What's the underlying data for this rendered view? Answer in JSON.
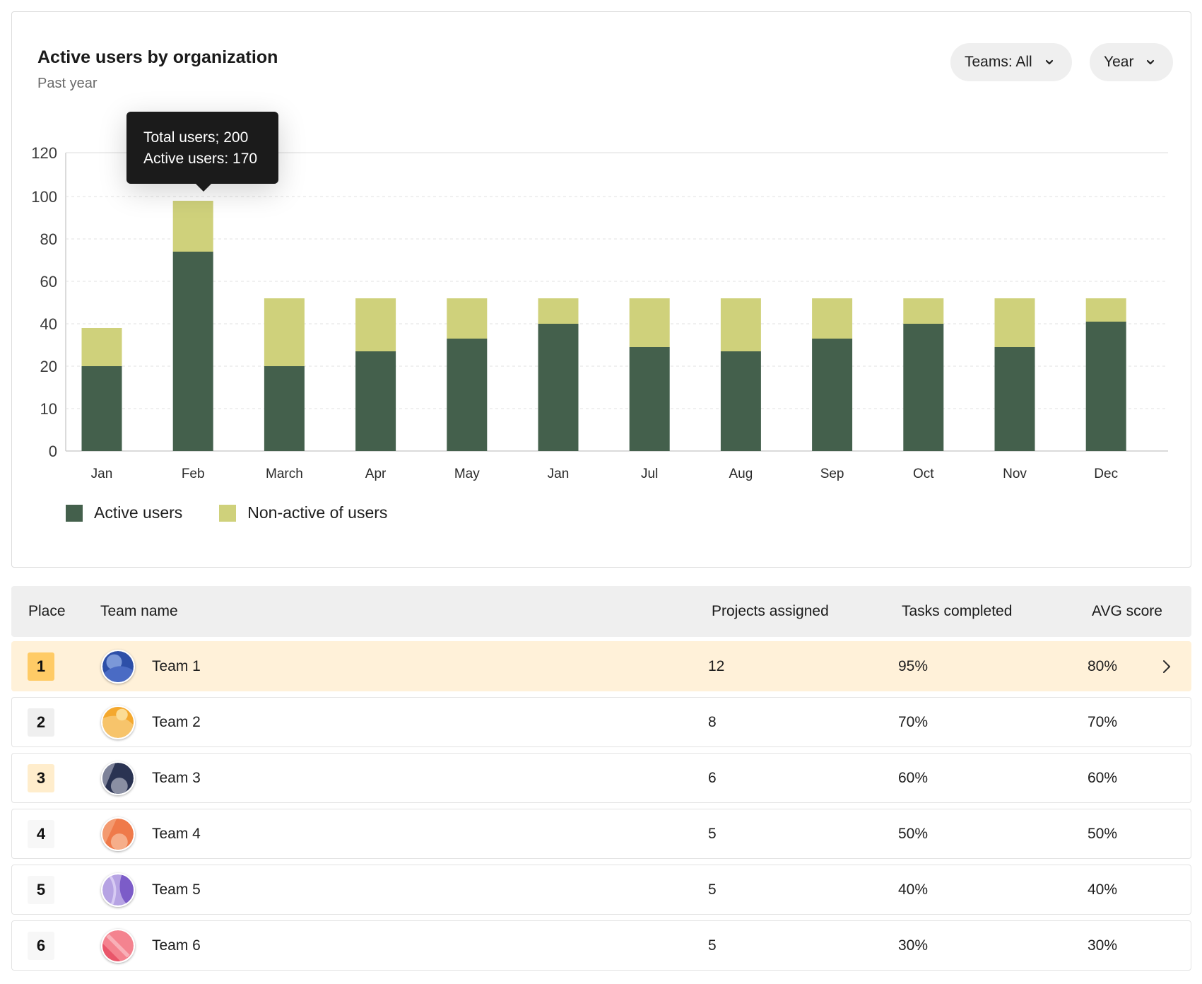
{
  "card": {
    "title": "Active users by organization",
    "subtitle": "Past year",
    "filters": [
      {
        "label": "Teams: All",
        "icon": "chevron-down-icon"
      },
      {
        "label": "Year",
        "icon": "chevron-down-icon"
      }
    ],
    "tooltip": {
      "line1": "Total users; 200",
      "line2": "Active users: 170"
    }
  },
  "colors": {
    "active": "#44604c",
    "nonactive": "#cfd17b",
    "highlight_row": "#fff1d9"
  },
  "chart_data": {
    "type": "bar",
    "stacked": true,
    "categories": [
      "Jan",
      "Feb",
      "March",
      "Apr",
      "May",
      "Jan",
      "Jul",
      "Aug",
      "Sep",
      "Oct",
      "Nov",
      "Dec"
    ],
    "y_ticks": [
      "0",
      "10",
      "20",
      "40",
      "60",
      "80",
      "100",
      "120"
    ],
    "y_tick_values": [
      0,
      10,
      20,
      40,
      60,
      80,
      100,
      120
    ],
    "series": [
      {
        "name": "Active users",
        "values": [
          20,
          74,
          20,
          27,
          33,
          40,
          29,
          27,
          33,
          40,
          29,
          41
        ]
      },
      {
        "name": "Non-active of users",
        "values": [
          18,
          24,
          32,
          25,
          19,
          12,
          23,
          25,
          19,
          12,
          23,
          11
        ]
      }
    ],
    "ylim": [
      0,
      120
    ],
    "grid": true,
    "legend": "bottom-left"
  },
  "table": {
    "headers": [
      "Place",
      "Team name",
      "Projects assigned",
      "Tasks completed",
      "AVG score"
    ],
    "rows": [
      {
        "place": "1",
        "team": "Team 1",
        "projects": "12",
        "tasks": "95%",
        "avg": "80%"
      },
      {
        "place": "2",
        "team": "Team 2",
        "projects": "8",
        "tasks": "70%",
        "avg": "70%"
      },
      {
        "place": "3",
        "team": "Team 3",
        "projects": "6",
        "tasks": "60%",
        "avg": "60%"
      },
      {
        "place": "4",
        "team": "Team 4",
        "projects": "5",
        "tasks": "50%",
        "avg": "50%"
      },
      {
        "place": "5",
        "team": "Team 5",
        "projects": "5",
        "tasks": "40%",
        "avg": "40%"
      },
      {
        "place": "6",
        "team": "Team 6",
        "projects": "5",
        "tasks": "30%",
        "avg": "30%"
      }
    ],
    "row_chevron_icon": "chevron-right-icon"
  }
}
